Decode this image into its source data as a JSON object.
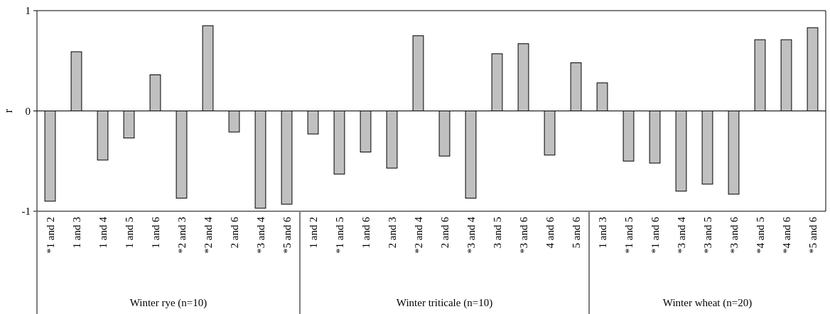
{
  "chart_data": [
    {
      "type": "bar",
      "ylabel": "r",
      "xlabel": "Winter rye  (n=10)",
      "categories": [
        "*1 and 2",
        "1 and 3",
        "1 and 4",
        "1 and 5",
        "1 and 6",
        "*2 and 3",
        "*2 and 4",
        "2 and 6",
        "*3 and 4",
        "*5 and 6"
      ],
      "values": [
        -0.9,
        0.59,
        -0.49,
        -0.27,
        0.36,
        -0.87,
        0.85,
        -0.21,
        -0.97,
        -0.93
      ],
      "color": "#c0c0c0",
      "ylim": [
        -1,
        1
      ],
      "yticks": [
        -1,
        0,
        1
      ]
    },
    {
      "type": "bar",
      "xlabel": "Winter triticale (n=10)",
      "categories": [
        "1 and 2",
        "*1 and 5",
        "1 and 6",
        "2 and 3",
        "*2 and 4",
        "2 and 6",
        "*3 and 4",
        "3 and 5",
        "*3 and 6",
        "4 and 6",
        "5 and 6"
      ],
      "values": [
        -0.23,
        -0.63,
        -0.41,
        -0.57,
        0.75,
        -0.45,
        -0.87,
        0.57,
        0.67,
        -0.44,
        0.48
      ],
      "color": "#c0c0c0",
      "ylim": [
        -1,
        1
      ],
      "tick_labels": "x"
    },
    {
      "type": "bar",
      "xlabel": "Winter wheat (n=20)",
      "categories": [
        "1 and 3",
        "*1 and 5",
        "*1 and 6",
        "*3 and 4",
        "*3 and 5",
        "*3 and 6",
        "*4 and 5",
        "*4 and 6",
        "*5 and 6"
      ],
      "values": [
        0.28,
        -0.5,
        -0.52,
        -0.8,
        -0.73,
        -0.83,
        0.71,
        0.71,
        0.83
      ],
      "color": "#c0c0c0",
      "ylim": [
        -1,
        1
      ],
      "tick_labels": "x"
    }
  ]
}
